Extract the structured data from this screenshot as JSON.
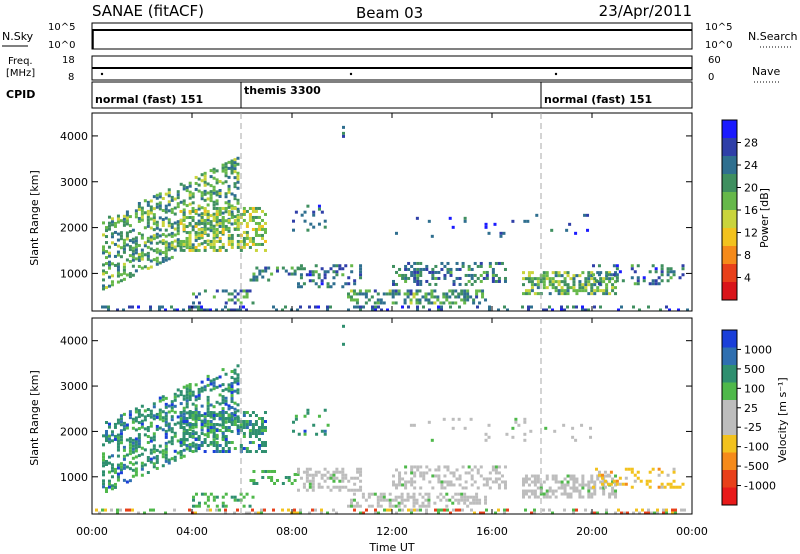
{
  "header": {
    "radar": "SANAE (fitACF)",
    "beam": "Beam 03",
    "date": "23/Apr/2011"
  },
  "summary_panels": {
    "nsky_label": "N.Sky",
    "nsearch_label": "N.Search",
    "freq_label_1": "Freq.",
    "freq_label_2": "[MHz]",
    "nave_label": "Nave",
    "cpid_label": "CPID",
    "noise_ticks_left": [
      "10^5",
      "10^0"
    ],
    "noise_ticks_right": [
      "10^5",
      "10^0"
    ],
    "freq_ticks_left": [
      "18",
      "8"
    ],
    "freq_ticks_right": [
      "60",
      "0"
    ],
    "cpid_segments": [
      {
        "label": "normal (fast) 151",
        "start_hour": 0
      },
      {
        "label": "themis 3300",
        "start_hour": 6
      },
      {
        "label": "normal (fast) 151",
        "start_hour": 18
      }
    ]
  },
  "x_axis": {
    "label": "Time UT",
    "ticks": [
      "00:00",
      "04:00",
      "08:00",
      "12:00",
      "16:00",
      "20:00",
      "00:00"
    ],
    "tick_hours": [
      0,
      4,
      8,
      12,
      16,
      20,
      24
    ]
  },
  "power_panel": {
    "ylabel": "Slant Range [km]",
    "yticks": [
      "4000",
      "3000",
      "2000",
      "1000"
    ],
    "colorbar_label": "Power [dB]",
    "colorbar_ticks": [
      "28",
      "24",
      "20",
      "16",
      "12",
      "8",
      "4"
    ],
    "colors": [
      "#1a1aff",
      "#2f3fa8",
      "#2f6f8f",
      "#3f8f5f",
      "#66b84a",
      "#c9d43c",
      "#f2c21e",
      "#f58a1a",
      "#e8401a",
      "#d9141a"
    ]
  },
  "velocity_panel": {
    "ylabel": "Slant Range [km]",
    "yticks": [
      "4000",
      "3000",
      "2000",
      "1000"
    ],
    "colorbar_label": "Velocity [m s⁻¹]",
    "colorbar_ticks": [
      "1000",
      "500",
      "100",
      "25",
      "-25",
      "-100",
      "-500",
      "-1000"
    ],
    "colors": [
      "#1a3fd9",
      "#2f6fb0",
      "#2f8f6f",
      "#4fb84a",
      "#bdbdbd",
      "#bdbdbd",
      "#f2c21e",
      "#f58a1a",
      "#e8401a",
      "#e81a1a"
    ]
  },
  "chart_data": {
    "type": "heatmap",
    "x_unit": "hours UT",
    "xlim": [
      0,
      24
    ],
    "ylim": [
      180,
      4500
    ],
    "scatter_regions": [
      {
        "x0": 0.4,
        "x1": 5.9,
        "y0": 600,
        "y1": 2200,
        "slope": 250,
        "power_mean": 10,
        "vel_class": "pos",
        "density": 0.45
      },
      {
        "x0": 3.5,
        "x1": 7.0,
        "y0": 1500,
        "y1": 2450,
        "slope": 0,
        "power_mean": 13,
        "vel_class": "pos",
        "density": 0.45
      },
      {
        "x0": 4.0,
        "x1": 6.5,
        "y0": 350,
        "y1": 650,
        "slope": 0,
        "power_mean": 8,
        "vel_class": "lowpos",
        "density": 0.35
      },
      {
        "x0": 6.3,
        "x1": 8.3,
        "y0": 800,
        "y1": 1150,
        "slope": 0,
        "power_mean": 7,
        "vel_class": "lowpos",
        "density": 0.3
      },
      {
        "x0": 8.0,
        "x1": 9.5,
        "y0": 1900,
        "y1": 2500,
        "slope": 0,
        "power_mean": 5,
        "vel_class": "pos",
        "density": 0.12
      },
      {
        "x0": 8.2,
        "x1": 10.8,
        "y0": 700,
        "y1": 1200,
        "slope": 0,
        "power_mean": 6,
        "vel_class": "gray",
        "density": 0.35
      },
      {
        "x0": 10.2,
        "x1": 15.8,
        "y0": 350,
        "y1": 650,
        "slope": 0,
        "power_mean": 9,
        "vel_class": "gray",
        "density": 0.5
      },
      {
        "x0": 12.0,
        "x1": 16.6,
        "y0": 700,
        "y1": 1250,
        "slope": 0,
        "power_mean": 7,
        "vel_class": "gray",
        "density": 0.35
      },
      {
        "x0": 17.2,
        "x1": 21.0,
        "y0": 500,
        "y1": 1050,
        "slope": 0,
        "power_mean": 11,
        "vel_class": "gray",
        "density": 0.6
      },
      {
        "x0": 20.0,
        "x1": 23.7,
        "y0": 750,
        "y1": 1200,
        "slope": 0,
        "power_mean": 6,
        "vel_class": "neg",
        "density": 0.25
      },
      {
        "x0": 0.0,
        "x1": 24.0,
        "y0": 180,
        "y1": 300,
        "slope": 0,
        "power_mean": 5,
        "vel_class": "mix",
        "density": 0.3
      },
      {
        "x0": 12.0,
        "x1": 20.0,
        "y0": 1800,
        "y1": 2300,
        "slope": 0,
        "power_mean": 4,
        "vel_class": "gray",
        "density": 0.05
      },
      {
        "x0": 10.0,
        "x1": 10.1,
        "y0": 3900,
        "y1": 4350,
        "slope": 0,
        "power_mean": 6,
        "vel_class": "pos",
        "density": 0.4
      }
    ]
  }
}
